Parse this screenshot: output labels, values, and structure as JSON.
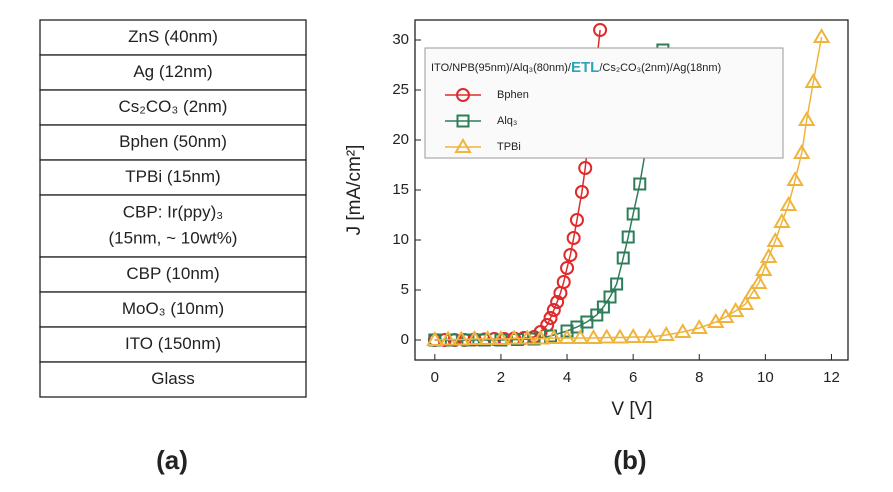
{
  "stack": {
    "layers": [
      [
        "ZnS (40nm)"
      ],
      [
        "Ag (12nm)"
      ],
      [
        "Cs₂CO₃ (2nm)"
      ],
      [
        "Bphen (50nm)"
      ],
      [
        "TPBi (15nm)"
      ],
      [
        "CBP: Ir(ppy)₃",
        "(15nm, ~ 10wt%)"
      ],
      [
        "CBP (10nm)"
      ],
      [
        "MoO₃ (10nm)"
      ],
      [
        "ITO (150nm)"
      ],
      [
        "Glass"
      ]
    ],
    "label": "(a)"
  },
  "chart_data": {
    "type": "line",
    "label": "(b)",
    "xlabel": "V [V]",
    "ylabel": "J [mA/cm²]",
    "legend_title": [
      "ITO/NPB(95nm)/Alq₃(80nm)/",
      "ETL",
      "/Cs₂CO₃(2nm)/Ag(18nm)"
    ],
    "legend": "upper left",
    "xlim": [
      -0.6,
      12.5
    ],
    "ylim": [
      -2,
      32
    ],
    "xticks": [
      0,
      2,
      4,
      6,
      8,
      10,
      12
    ],
    "yticks": [
      0,
      5,
      10,
      15,
      20,
      25,
      30
    ],
    "series": [
      {
        "name": "Bphen",
        "color": "#e02a2a",
        "marker": "circle",
        "x": [
          0,
          0.3,
          0.6,
          0.9,
          1.2,
          1.5,
          1.8,
          2.1,
          2.4,
          2.7,
          3.0,
          3.2,
          3.4,
          3.5,
          3.6,
          3.7,
          3.8,
          3.9,
          4.0,
          4.1,
          4.2,
          4.3,
          4.45,
          4.55,
          5.0
        ],
        "values": [
          0,
          0,
          0,
          0,
          0.05,
          0.05,
          0.1,
          0.1,
          0.15,
          0.2,
          0.3,
          0.8,
          1.5,
          2.2,
          3.0,
          3.8,
          4.7,
          5.8,
          7.2,
          8.5,
          10.2,
          12.0,
          14.8,
          17.2,
          31
        ]
      },
      {
        "name": "Alq₃",
        "color": "#2e7d5a",
        "marker": "square",
        "x": [
          0,
          0.5,
          1.0,
          1.5,
          2.0,
          2.5,
          3.0,
          3.5,
          4.0,
          4.3,
          4.6,
          4.9,
          5.1,
          5.3,
          5.5,
          5.7,
          5.85,
          6.0,
          6.2,
          6.9
        ],
        "values": [
          0,
          0,
          0,
          0,
          0,
          0.05,
          0.1,
          0.4,
          0.9,
          1.3,
          1.8,
          2.5,
          3.3,
          4.3,
          5.6,
          8.2,
          10.3,
          12.6,
          15.6,
          29
        ]
      },
      {
        "name": "TPBi",
        "color": "#f0b43c",
        "marker": "triangle",
        "x": [
          0,
          0.4,
          0.8,
          1.2,
          1.6,
          2.0,
          2.4,
          2.8,
          3.2,
          3.6,
          4.0,
          4.4,
          4.8,
          5.2,
          5.6,
          6.0,
          6.5,
          7.0,
          7.5,
          8.0,
          8.5,
          8.8,
          9.1,
          9.4,
          9.6,
          9.8,
          9.95,
          10.1,
          10.3,
          10.5,
          10.7,
          10.9,
          11.1,
          11.25,
          11.45,
          11.7
        ],
        "values": [
          0,
          0.05,
          0.05,
          0.1,
          0.1,
          0.1,
          0.15,
          0.15,
          0.15,
          0.2,
          0.2,
          0.2,
          0.2,
          0.25,
          0.25,
          0.3,
          0.3,
          0.5,
          0.8,
          1.2,
          1.8,
          2.3,
          2.9,
          3.6,
          4.7,
          5.7,
          7.0,
          8.3,
          9.9,
          11.8,
          13.5,
          16.0,
          18.7,
          22.0,
          25.8,
          30.3
        ]
      }
    ]
  }
}
